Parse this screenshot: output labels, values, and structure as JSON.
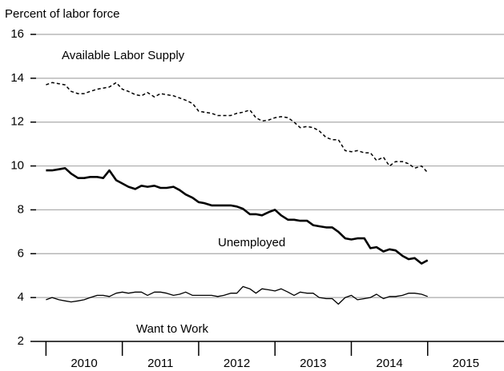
{
  "chart_data": {
    "type": "line",
    "y_label": "Percent of labor force",
    "x": [
      2010,
      2010.08,
      2010.17,
      2010.25,
      2010.33,
      2010.42,
      2010.5,
      2010.58,
      2010.67,
      2010.75,
      2010.83,
      2010.92,
      2011,
      2011.08,
      2011.17,
      2011.25,
      2011.33,
      2011.42,
      2011.5,
      2011.58,
      2011.67,
      2011.75,
      2011.83,
      2011.92,
      2012,
      2012.08,
      2012.17,
      2012.25,
      2012.33,
      2012.42,
      2012.5,
      2012.58,
      2012.67,
      2012.75,
      2012.83,
      2012.92,
      2013,
      2013.08,
      2013.17,
      2013.25,
      2013.33,
      2013.42,
      2013.5,
      2013.58,
      2013.67,
      2013.75,
      2013.83,
      2013.92,
      2014,
      2014.08,
      2014.17,
      2014.25,
      2014.33,
      2014.42,
      2014.5,
      2014.58,
      2014.67,
      2014.75,
      2014.83,
      2014.92,
      2015
    ],
    "series": [
      {
        "name": "Available Labor Supply",
        "color": "#000000",
        "style": "dashed",
        "values": [
          13.7,
          13.8,
          13.75,
          13.7,
          13.4,
          13.3,
          13.3,
          13.4,
          13.5,
          13.55,
          13.6,
          13.8,
          13.5,
          13.4,
          13.25,
          13.2,
          13.35,
          13.15,
          13.3,
          13.25,
          13.2,
          13.1,
          13.0,
          12.85,
          12.5,
          12.45,
          12.4,
          12.3,
          12.3,
          12.3,
          12.4,
          12.45,
          12.55,
          12.2,
          12.05,
          12.1,
          12.2,
          12.25,
          12.2,
          12.0,
          11.75,
          11.8,
          11.75,
          11.6,
          11.3,
          11.2,
          11.2,
          10.7,
          10.65,
          10.7,
          10.6,
          10.6,
          10.25,
          10.4,
          10.0,
          10.2,
          10.2,
          10.1,
          9.9,
          10.0,
          9.7
        ]
      },
      {
        "name": "Unemployed",
        "color": "#000000",
        "style": "bold",
        "values": [
          9.8,
          9.8,
          9.85,
          9.9,
          9.65,
          9.45,
          9.45,
          9.5,
          9.5,
          9.45,
          9.8,
          9.35,
          9.2,
          9.05,
          8.95,
          9.1,
          9.05,
          9.1,
          9.0,
          9.0,
          9.05,
          8.9,
          8.7,
          8.55,
          8.35,
          8.3,
          8.2,
          8.2,
          8.2,
          8.2,
          8.15,
          8.05,
          7.8,
          7.8,
          7.75,
          7.9,
          8.0,
          7.75,
          7.55,
          7.55,
          7.5,
          7.5,
          7.3,
          7.25,
          7.2,
          7.2,
          7.0,
          6.7,
          6.65,
          6.7,
          6.7,
          6.25,
          6.3,
          6.1,
          6.2,
          6.15,
          5.9,
          5.75,
          5.8,
          5.55,
          5.7
        ]
      },
      {
        "name": "Want to Work",
        "color": "#000000",
        "style": "solid",
        "values": [
          3.9,
          4.0,
          3.9,
          3.85,
          3.8,
          3.85,
          3.9,
          4.0,
          4.1,
          4.1,
          4.05,
          4.2,
          4.25,
          4.2,
          4.25,
          4.25,
          4.1,
          4.25,
          4.25,
          4.2,
          4.1,
          4.15,
          4.25,
          4.1,
          4.1,
          4.1,
          4.1,
          4.05,
          4.1,
          4.2,
          4.2,
          4.5,
          4.4,
          4.2,
          4.4,
          4.35,
          4.3,
          4.4,
          4.25,
          4.1,
          4.25,
          4.2,
          4.2,
          4.0,
          3.95,
          3.95,
          3.7,
          4.0,
          4.1,
          3.9,
          3.95,
          4.0,
          4.15,
          3.95,
          4.05,
          4.05,
          4.1,
          4.2,
          4.2,
          4.15,
          4.05
        ]
      }
    ],
    "xlim": [
      2009.87,
      2016
    ],
    "xticks": [
      2010,
      2011,
      2012,
      2013,
      2014,
      2015
    ],
    "xlabels": [
      "2010",
      "2011",
      "2012",
      "2013",
      "2014",
      "2015"
    ],
    "ylim": [
      2,
      16
    ],
    "yticks": [
      2,
      4,
      6,
      8,
      10,
      12,
      14,
      16
    ],
    "grid": true
  }
}
